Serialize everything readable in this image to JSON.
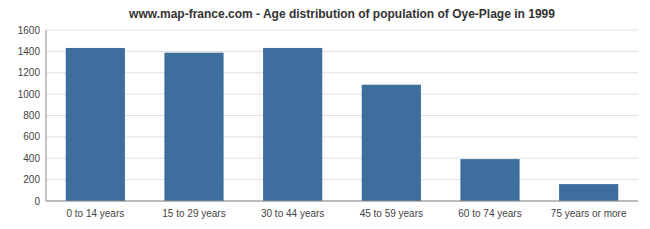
{
  "chart_data": {
    "type": "bar",
    "title": "www.map-france.com - Age distribution of population of Oye-Plage in 1999",
    "categories": [
      "0 to 14 years",
      "15 to 29 years",
      "30 to 44 years",
      "45 to 59 years",
      "60 to 74 years",
      "75 years or more"
    ],
    "values": [
      1432,
      1388,
      1432,
      1088,
      392,
      158
    ],
    "color": "#3d6e9e",
    "ylim": [
      0,
      1600
    ],
    "yticks": [
      0,
      200,
      400,
      600,
      800,
      1000,
      1200,
      1400,
      1600
    ],
    "grid": true
  }
}
